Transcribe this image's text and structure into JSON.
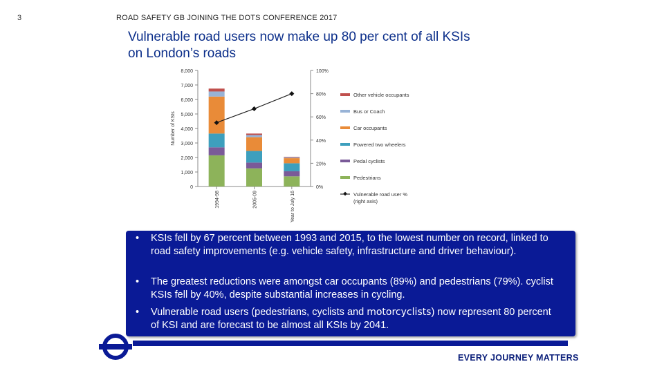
{
  "slide": {
    "number": "3",
    "header": "ROAD SAFETY GB JOINING THE DOTS CONFERENCE 2017"
  },
  "title": {
    "line1": "Vulnerable road users now make up 80 per cent of all KSIs",
    "line2": "on London’s roads"
  },
  "chart_data": {
    "type": "bar",
    "stacked": true,
    "categories": [
      "1994-98",
      "2005-09",
      "Year to July 16"
    ],
    "ylabel": "Number of KSIs",
    "ylim": [
      0,
      8000
    ],
    "yticks": [
      "0",
      "1,000",
      "2,000",
      "3,000",
      "4,000",
      "5,000",
      "6,000",
      "7,000",
      "8,000"
    ],
    "y2lim": [
      0,
      100
    ],
    "y2ticks": [
      "0%",
      "20%",
      "40%",
      "60%",
      "80%",
      "100%"
    ],
    "grid": false,
    "legend_position": "right",
    "series": [
      {
        "name": "Pedestrians",
        "color": "#8db35a",
        "values": [
          2150,
          1250,
          700
        ]
      },
      {
        "name": "Pedal cyclists",
        "color": "#7a5a98",
        "values": [
          550,
          400,
          350
        ]
      },
      {
        "name": "Powered two wheelers",
        "color": "#3d9fbd",
        "values": [
          950,
          800,
          550
        ]
      },
      {
        "name": "Car occupants",
        "color": "#e98b38",
        "values": [
          2550,
          950,
          350
        ]
      },
      {
        "name": "Bus or Coach",
        "color": "#98b3d6",
        "values": [
          350,
          150,
          60
        ]
      },
      {
        "name": "Other vehicle occupants",
        "color": "#c0504d",
        "values": [
          200,
          100,
          40
        ]
      }
    ],
    "line_series": {
      "name": "Vulnerable road user % (right axis)",
      "axis": "right",
      "values": [
        55,
        67,
        80
      ]
    }
  },
  "bullets": [
    {
      "text": "KSIs fell by 67 percent between 1993 and 2015, to the lowest number on record, linked to road safety improvements (e.g. vehicle safety, infrastructure and driver behaviour)."
    },
    {
      "text": "The greatest reductions were amongst car occupants (89%) and pedestrians (79%). cyclist KSIs fell by 40%, despite substantial increases in cycling."
    },
    {
      "before": "Vulnerable road users (pedestrians, cyclists and ",
      "strong": "motorcyclists",
      "after": ") now represent 80 percent of KSI and are forecast to be almost all KSIs by 2041."
    }
  ],
  "footer": {
    "tagline": "EVERY JOURNEY MATTERS",
    "logo_icon": "tfl-roundel-icon"
  },
  "colors": {
    "brand_blue": "#0a1a96",
    "title_blue": "#0b2e8a"
  }
}
